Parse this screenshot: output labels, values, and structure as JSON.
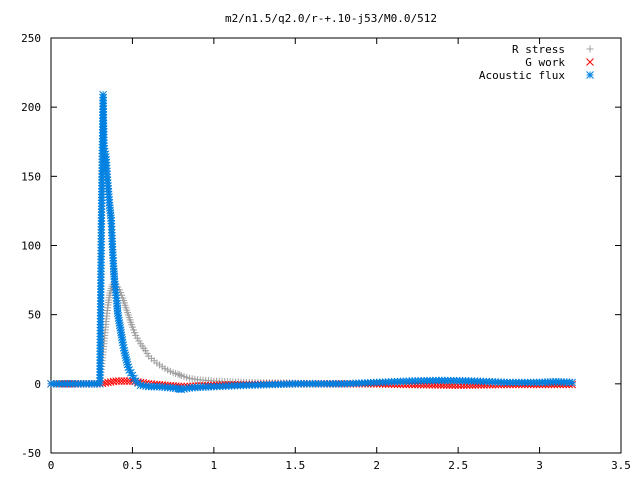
{
  "chart_data": {
    "type": "scatter",
    "title": "m2/n1.5/q2.0/r-+.10-j53/M0.0/512",
    "xlabel": "",
    "ylabel": "",
    "xlim": [
      0,
      3.5
    ],
    "ylim": [
      -50,
      250
    ],
    "x_ticks": [
      "0",
      "0.5",
      "1",
      "1.5",
      "2",
      "2.5",
      "3",
      "3.5"
    ],
    "x_tick_values": [
      0,
      0.5,
      1,
      1.5,
      2,
      2.5,
      3,
      3.5
    ],
    "y_ticks": [
      "250",
      "200",
      "150",
      "100",
      "50",
      "0",
      "-50"
    ],
    "y_tick_values": [
      250,
      200,
      150,
      100,
      50,
      0,
      -50
    ],
    "grid": false,
    "legend_position": "top-right",
    "series": [
      {
        "name": "R stress",
        "marker": "plus",
        "color": "#a0a0a0",
        "points": [
          [
            0.0,
            0
          ],
          [
            0.1,
            0
          ],
          [
            0.2,
            0
          ],
          [
            0.3,
            0
          ],
          [
            0.32,
            23
          ],
          [
            0.33,
            35
          ],
          [
            0.34,
            47
          ],
          [
            0.35,
            57
          ],
          [
            0.36,
            64
          ],
          [
            0.37,
            69
          ],
          [
            0.38,
            72
          ],
          [
            0.39,
            73
          ],
          [
            0.4,
            72
          ],
          [
            0.42,
            68
          ],
          [
            0.44,
            62
          ],
          [
            0.46,
            55
          ],
          [
            0.48,
            48
          ],
          [
            0.5,
            41
          ],
          [
            0.52,
            35
          ],
          [
            0.55,
            29
          ],
          [
            0.58,
            24
          ],
          [
            0.6,
            20
          ],
          [
            0.65,
            15
          ],
          [
            0.7,
            11
          ],
          [
            0.75,
            8
          ],
          [
            0.78,
            7
          ],
          [
            0.8,
            6
          ],
          [
            0.85,
            4
          ],
          [
            0.9,
            3
          ],
          [
            1.0,
            2
          ],
          [
            1.1,
            1.5
          ],
          [
            1.2,
            1
          ],
          [
            1.5,
            0.5
          ],
          [
            2.0,
            0
          ],
          [
            2.5,
            0
          ],
          [
            3.0,
            0
          ],
          [
            3.2,
            0
          ]
        ]
      },
      {
        "name": "G work",
        "marker": "cross",
        "color": "#ff0000",
        "points": [
          [
            0.0,
            0
          ],
          [
            0.2,
            0
          ],
          [
            0.3,
            0
          ],
          [
            0.35,
            1
          ],
          [
            0.4,
            2
          ],
          [
            0.45,
            2
          ],
          [
            0.5,
            2
          ],
          [
            0.55,
            1
          ],
          [
            0.6,
            0
          ],
          [
            0.7,
            -1
          ],
          [
            0.8,
            -2
          ],
          [
            1.0,
            -1
          ],
          [
            1.2,
            -0.5
          ],
          [
            1.5,
            0
          ],
          [
            2.0,
            0
          ],
          [
            2.2,
            -0.5
          ],
          [
            2.5,
            -1
          ],
          [
            2.8,
            -0.5
          ],
          [
            3.0,
            -0.5
          ],
          [
            3.2,
            -0.5
          ]
        ]
      },
      {
        "name": "Acoustic flux",
        "marker": "asterisk",
        "color": "#0080e0",
        "points": [
          [
            0.0,
            0
          ],
          [
            0.1,
            0
          ],
          [
            0.2,
            0
          ],
          [
            0.3,
            0
          ],
          [
            0.31,
            122
          ],
          [
            0.32,
            209
          ],
          [
            0.325,
            172
          ],
          [
            0.33,
            168
          ],
          [
            0.335,
            166
          ],
          [
            0.34,
            160
          ],
          [
            0.35,
            143
          ],
          [
            0.36,
            129
          ],
          [
            0.37,
            118
          ],
          [
            0.375,
            105
          ],
          [
            0.38,
            93
          ],
          [
            0.385,
            83
          ],
          [
            0.39,
            74
          ],
          [
            0.4,
            64
          ],
          [
            0.405,
            58
          ],
          [
            0.41,
            51
          ],
          [
            0.42,
            44
          ],
          [
            0.43,
            37
          ],
          [
            0.44,
            30
          ],
          [
            0.45,
            24
          ],
          [
            0.46,
            19
          ],
          [
            0.47,
            14
          ],
          [
            0.48,
            10
          ],
          [
            0.5,
            6
          ],
          [
            0.52,
            2
          ],
          [
            0.55,
            -1
          ],
          [
            0.6,
            -2
          ],
          [
            0.65,
            -2
          ],
          [
            0.7,
            -2.5
          ],
          [
            0.75,
            -3
          ],
          [
            0.78,
            -3.5
          ],
          [
            0.8,
            -4
          ],
          [
            0.85,
            -3
          ],
          [
            0.9,
            -2.5
          ],
          [
            1.0,
            -2
          ],
          [
            1.2,
            -1
          ],
          [
            1.5,
            0
          ],
          [
            1.8,
            0
          ],
          [
            2.0,
            1
          ],
          [
            2.2,
            2
          ],
          [
            2.4,
            2.5
          ],
          [
            2.6,
            2
          ],
          [
            2.8,
            1
          ],
          [
            3.0,
            1
          ],
          [
            3.1,
            1.5
          ],
          [
            3.2,
            1
          ]
        ]
      }
    ]
  }
}
